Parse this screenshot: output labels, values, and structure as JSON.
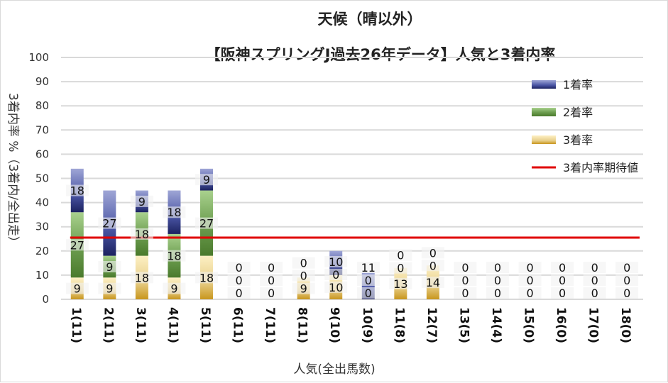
{
  "chart_data": {
    "type": "bar",
    "stacked": true,
    "title": "天候（晴以外）",
    "subtitle": "【阪神スプリングJ過去26年データ】人気と3着内率",
    "xlabel": "人気(全出馬数)",
    "ylabel": "3着内率 %（3着内/全出走）",
    "ylim": [
      0,
      100
    ],
    "yticks": [
      0,
      10,
      20,
      30,
      40,
      50,
      60,
      70,
      80,
      90,
      100
    ],
    "grid": true,
    "legend_position": "right",
    "categories": [
      "1(11)",
      "2(11)",
      "3(11)",
      "4(11)",
      "5(11)",
      "6(11)",
      "7(11)",
      "8(11)",
      "9(10)",
      "10(9)",
      "11(8)",
      "12(7)",
      "13(5)",
      "14(4)",
      "15(0)",
      "16(0)",
      "17(0)",
      "18(0)"
    ],
    "series": [
      {
        "name": "3着率",
        "color": "#c8961e",
        "values": [
          9,
          9,
          18,
          9,
          18,
          0,
          0,
          9,
          10,
          0,
          13,
          14,
          0,
          0,
          0,
          0,
          0,
          0
        ]
      },
      {
        "name": "2着率",
        "color": "#548235",
        "values": [
          27,
          9,
          18,
          18,
          27,
          0,
          0,
          0,
          0,
          0,
          0,
          0,
          0,
          0,
          0,
          0,
          0,
          0
        ]
      },
      {
        "name": "1着率",
        "color": "#2f3b8c",
        "values": [
          18,
          27,
          9,
          18,
          9,
          0,
          0,
          0,
          10,
          11,
          0,
          0,
          0,
          0,
          0,
          0,
          0,
          0
        ]
      }
    ],
    "expected_line": {
      "name": "3着内率期待値",
      "value": 25.5,
      "color": "#e00000"
    }
  }
}
